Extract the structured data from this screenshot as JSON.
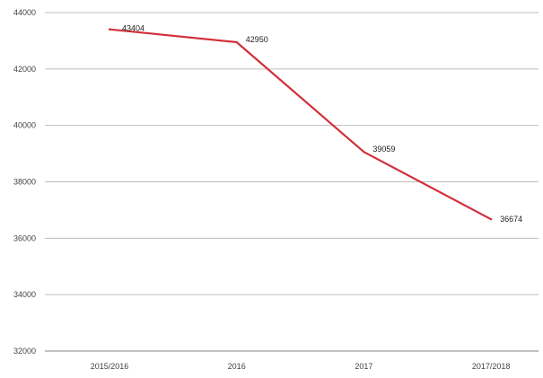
{
  "chart_data": {
    "type": "line",
    "categories": [
      "2015/2016",
      "2016",
      "2017",
      "2017/2018"
    ],
    "series": [
      {
        "values": [
          43404,
          42950,
          39059,
          36674
        ]
      }
    ],
    "data_labels": [
      "43404",
      "42950",
      "39059",
      "36674"
    ],
    "ylim": [
      32000,
      44000
    ],
    "yticks": [
      32000,
      34000,
      36000,
      38000,
      40000,
      42000,
      44000
    ],
    "ytick_labels": [
      "32000",
      "34000",
      "36000",
      "38000",
      "40000",
      "42000",
      "44000"
    ],
    "grid": true,
    "legend": "none",
    "colors": {
      "line": "#d2303a",
      "grid": "#bdbdbd",
      "axis": "#9a9a9a"
    }
  }
}
